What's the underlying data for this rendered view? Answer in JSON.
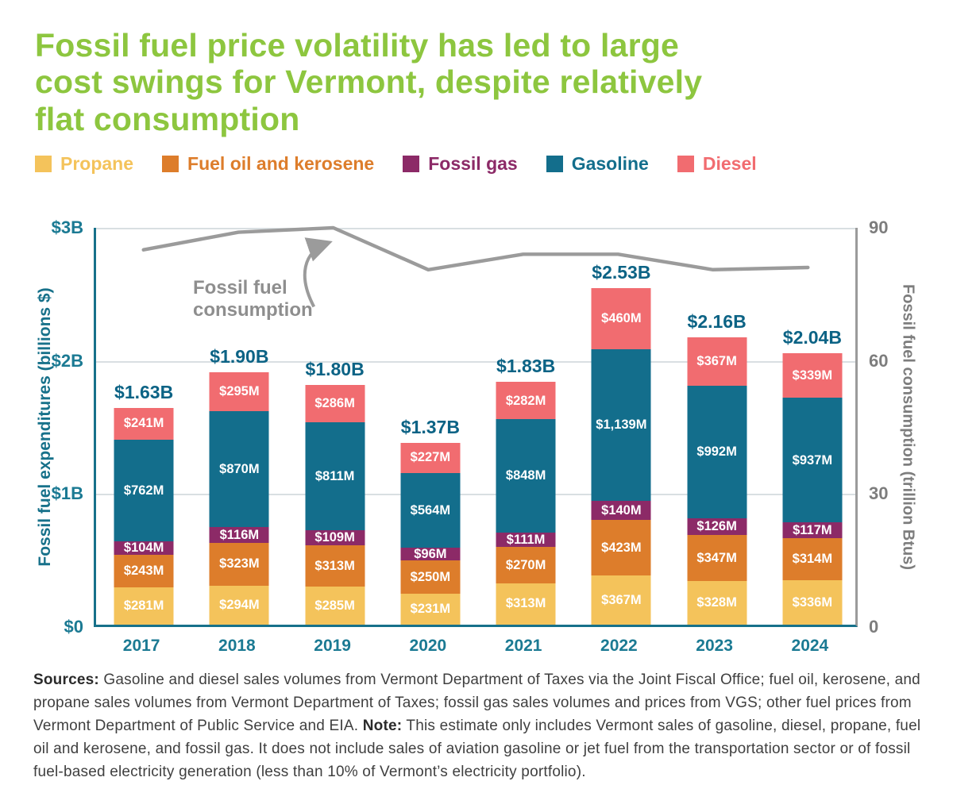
{
  "title": {
    "lines": [
      "Fossil fuel price volatility has led to large",
      "cost swings for Vermont, despite relatively",
      "flat consumption"
    ]
  },
  "legend": [
    {
      "label": "Propane",
      "color": "#F4C35B"
    },
    {
      "label": "Fuel oil and kerosene",
      "color": "#DD7D2B"
    },
    {
      "label": "Fossil gas",
      "color": "#8C2A67"
    },
    {
      "label": "Gasoline",
      "color": "#136E8C"
    },
    {
      "label": "Diesel",
      "color": "#F16C70"
    }
  ],
  "chart_data": {
    "type": "bar",
    "stacked": true,
    "title": "Fossil fuel price volatility has led to large cost swings for Vermont, despite relatively flat consumption",
    "categories": [
      "2017",
      "2018",
      "2019",
      "2020",
      "2021",
      "2022",
      "2023",
      "2024"
    ],
    "series": [
      {
        "name": "Propane",
        "color": "#F4C35B",
        "values": [
          281,
          294,
          285,
          231,
          313,
          367,
          328,
          336
        ],
        "labels": [
          "$281M",
          "$294M",
          "$285M",
          "$231M",
          "$313M",
          "$367M",
          "$328M",
          "$336M"
        ]
      },
      {
        "name": "Fuel oil and kerosene",
        "color": "#DD7D2B",
        "values": [
          243,
          323,
          313,
          250,
          270,
          423,
          347,
          314
        ],
        "labels": [
          "$243M",
          "$323M",
          "$313M",
          "$250M",
          "$270M",
          "$423M",
          "$347M",
          "$314M"
        ]
      },
      {
        "name": "Fossil gas",
        "color": "#8C2A67",
        "values": [
          104,
          116,
          109,
          96,
          111,
          140,
          126,
          117
        ],
        "labels": [
          "$104M",
          "$116M",
          "$109M",
          "$96M",
          "$111M",
          "$140M",
          "$126M",
          "$117M"
        ]
      },
      {
        "name": "Gasoline",
        "color": "#136E8C",
        "values": [
          762,
          870,
          811,
          564,
          848,
          1139,
          992,
          937
        ],
        "labels": [
          "$762M",
          "$870M",
          "$811M",
          "$564M",
          "$848M",
          "$1,139M",
          "$992M",
          "$937M"
        ]
      },
      {
        "name": "Diesel",
        "color": "#F16C70",
        "values": [
          241,
          295,
          286,
          227,
          282,
          460,
          367,
          339
        ],
        "labels": [
          "$241M",
          "$295M",
          "$286M",
          "$227M",
          "$282M",
          "$460M",
          "$367M",
          "$339M"
        ]
      }
    ],
    "totals": [
      "$1.63B",
      "$1.90B",
      "$1.80B",
      "$1.37B",
      "$1.83B",
      "$2.53B",
      "$2.16B",
      "$2.04B"
    ],
    "consumption_line": {
      "name": "Fossil fuel consumption",
      "units": "trillion Btus",
      "values": [
        85,
        89,
        90,
        80.5,
        84,
        84,
        80.5,
        81
      ],
      "color": "#9B9B9B"
    },
    "annotation": "Fossil fuel consumption",
    "ylabel_left": "Fossil fuel expenditures (billions $)",
    "ylabel_right": "Fossil fuel consumption (trillion Btus)",
    "yticks_left": [
      "$0",
      "$1B",
      "$2B",
      "$3B"
    ],
    "yticks_right": [
      "0",
      "30",
      "60",
      "90"
    ],
    "ylim_left": [
      0,
      3000
    ],
    "ylim_right": [
      0,
      90
    ],
    "grid": "horizontal",
    "legend_position": "top"
  },
  "sources": {
    "label": "Sources:",
    "text1": " Gasoline and diesel sales volumes from Vermont Department of Taxes via the Joint Fiscal Office; fuel oil, kerosene, and propane sales volumes from Vermont Department of Taxes; fossil gas sales volumes and prices from VGS; other fuel prices from Vermont Department of Public Service and EIA. ",
    "note_label": "Note:",
    "text2": " This estimate only includes Vermont sales of gasoline, diesel, propane, fuel oil and kerosene, and fossil gas. It does not include sales of aviation gasoline or jet fuel from the transportation sector or of fossil fuel-based electricity generation (less than 10% of Vermont’s electricity portfolio)."
  }
}
